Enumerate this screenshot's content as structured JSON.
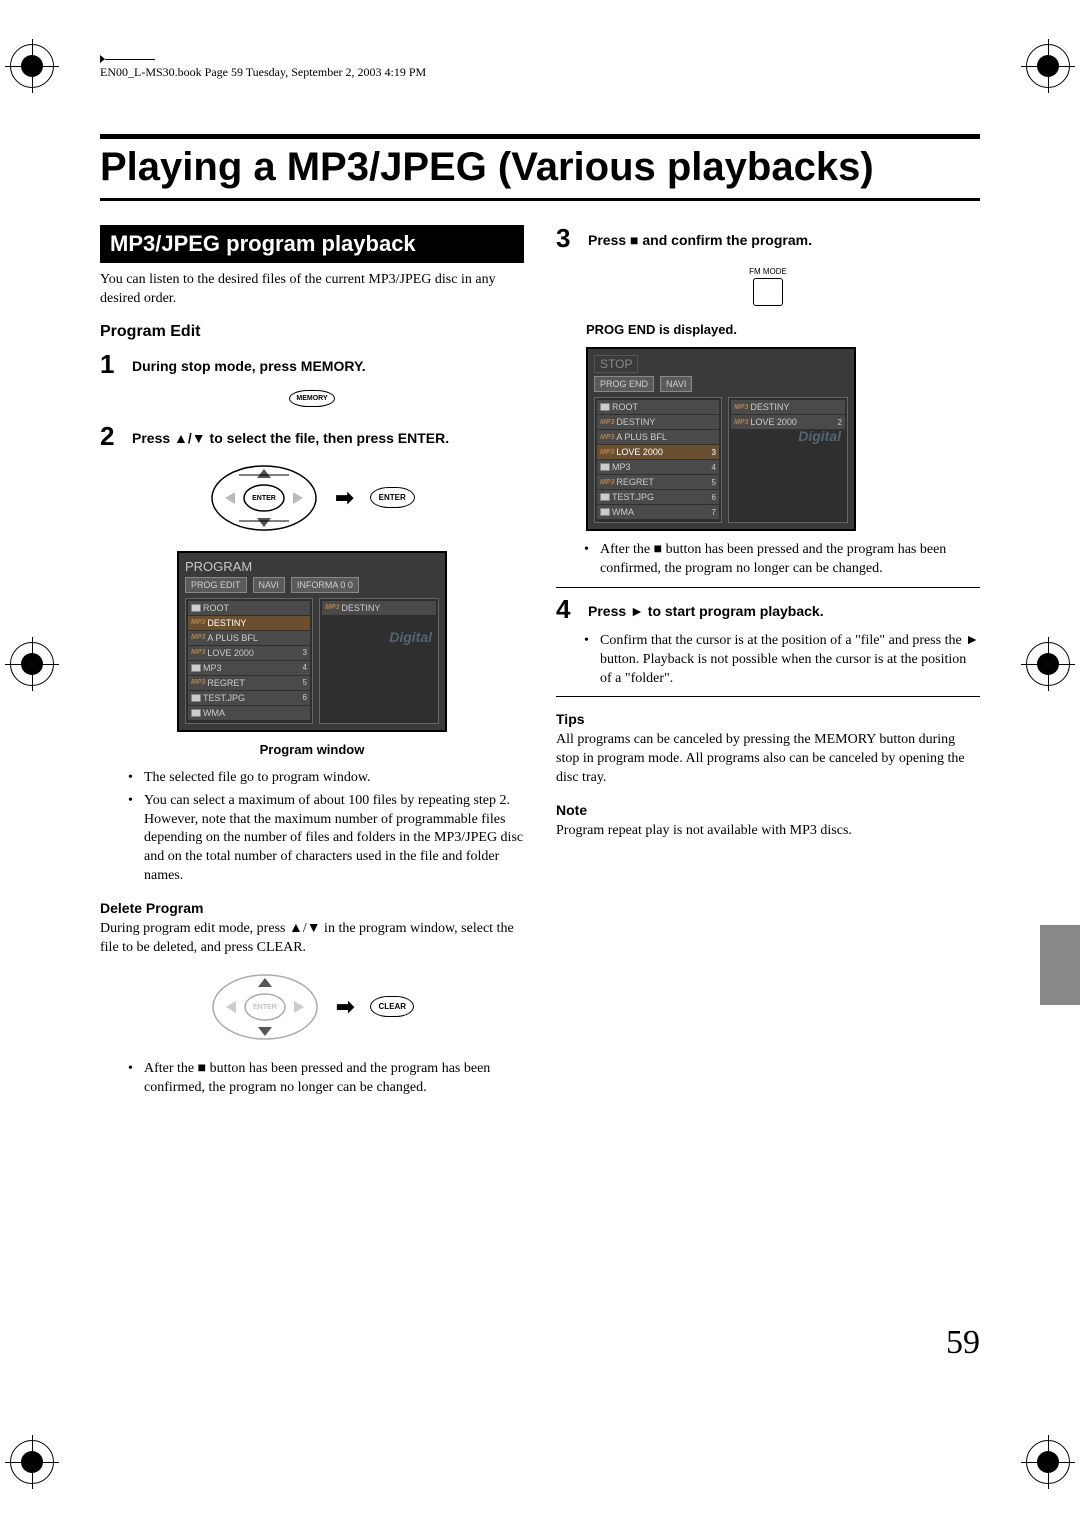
{
  "header": "EN00_L-MS30.book  Page 59  Tuesday, September 2, 2003  4:19 PM",
  "title": "Playing a MP3/JPEG (Various playbacks)",
  "section": "MP3/JPEG program playback",
  "intro": "You can listen to the desired files of the current MP3/JPEG disc in any desired order.",
  "program_edit": "Program Edit",
  "steps": {
    "s1": "During stop mode, press MEMORY.",
    "s2": "Press ▲/▼ to select the file, then press ENTER.",
    "s3": "Press ■ and confirm the program.",
    "s4": "Press ► to start program playback."
  },
  "memory_label": "MEMORY",
  "enter_label": "ENTER",
  "clear_label": "CLEAR",
  "fm_mode": "FM MODE",
  "prog_window_caption": "Program window",
  "screenshot1": {
    "header": "PROGRAM",
    "tags": [
      "PROG EDIT",
      "NAVI",
      "INFORMA  0 0"
    ],
    "left": [
      {
        "icon": "folder",
        "label": "ROOT",
        "num": ""
      },
      {
        "icon": "mp3",
        "label": "DESTINY",
        "num": "",
        "hl": true
      },
      {
        "icon": "mp3",
        "label": "A PLUS BFL",
        "num": ""
      },
      {
        "icon": "mp3",
        "label": "LOVE 2000",
        "num": "3"
      },
      {
        "icon": "folder",
        "label": "MP3",
        "num": "4"
      },
      {
        "icon": "mp3",
        "label": "REGRET",
        "num": "5"
      },
      {
        "icon": "folder",
        "label": "TEST.JPG",
        "num": "6"
      },
      {
        "icon": "folder",
        "label": "WMA",
        "num": ""
      }
    ],
    "right": [
      {
        "icon": "mp3",
        "label": "DESTINY",
        "num": ""
      }
    ],
    "digital": "Digital"
  },
  "screenshot2": {
    "stop": "STOP",
    "tags": [
      "PROG END",
      "NAVI"
    ],
    "left": [
      {
        "icon": "folder",
        "label": "ROOT",
        "num": ""
      },
      {
        "icon": "mp3",
        "label": "DESTINY",
        "num": ""
      },
      {
        "icon": "mp3",
        "label": "A PLUS BFL",
        "num": ""
      },
      {
        "icon": "mp3",
        "label": "LOVE 2000",
        "num": "3",
        "hl": true
      },
      {
        "icon": "folder",
        "label": "MP3",
        "num": "4"
      },
      {
        "icon": "mp3",
        "label": "REGRET",
        "num": "5"
      },
      {
        "icon": "folder",
        "label": "TEST.JPG",
        "num": "6"
      },
      {
        "icon": "folder",
        "label": "WMA",
        "num": "7"
      }
    ],
    "right": [
      {
        "icon": "mp3",
        "label": "DESTINY",
        "num": ""
      },
      {
        "icon": "mp3",
        "label": "LOVE 2000",
        "num": "2"
      }
    ],
    "digital": "Digital"
  },
  "bullets_after_sc1": [
    "The selected file go to program window.",
    "You can select a maximum of about 100 files by repeating step 2. However, note that the maximum number of programmable files depending on the number of files and folders in the MP3/JPEG disc and on the total number of characters used in the file and folder names."
  ],
  "delete_program": {
    "heading": "Delete Program",
    "text": "During program edit mode, press ▲/▼ in the program window, select the file to be deleted, and press CLEAR.",
    "after": "After the ■ button has been pressed and the program has been confirmed, the program no longer can be changed."
  },
  "prog_end": "PROG END is displayed.",
  "after_sc2": "After the ■ button has been pressed and the program has been confirmed, the program no longer can be changed.",
  "s4_body": "Confirm that the cursor is at the position of a \"file\" and press the ► button. Playback is not possible when the cursor is at the position of a \"folder\".",
  "tips": {
    "heading": "Tips",
    "text": "All programs can be canceled by pressing the MEMORY button during stop in program mode. All programs also can be canceled by opening the disc tray."
  },
  "note": {
    "heading": "Note",
    "text": "Program repeat play is not available with MP3 discs."
  },
  "page_number": "59"
}
